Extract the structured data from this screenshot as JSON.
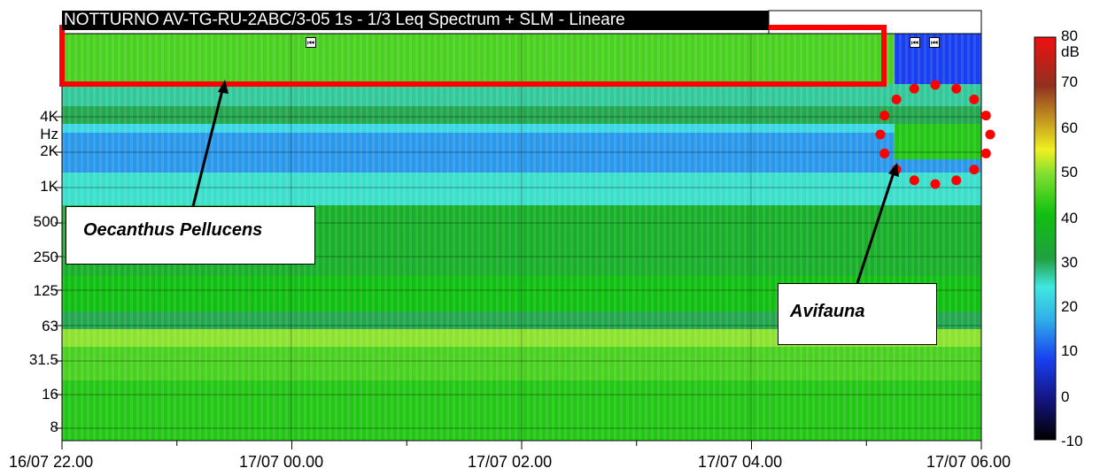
{
  "chart_data": {
    "type": "heatmap",
    "title": "NOTTURNO AV-TG-RU-2ABC/3-05 1s - 1/3 Leq Spectrum + SLM - Lineare",
    "x_tick_labels": [
      "16/07 22.00",
      "17/07 00.00",
      "17/07 02.00",
      "17/07 04.00",
      "17/07 06.00"
    ],
    "y_tick_labels": [
      "8",
      "16",
      "31.5",
      "63",
      "125",
      "250",
      "500",
      "1K",
      "2K",
      "Hz",
      "4K"
    ],
    "colorbar": {
      "unit": "dB",
      "range": [
        -10,
        80
      ],
      "tick_labels": [
        "80",
        "70",
        "60",
        "50",
        "40",
        "30",
        "20",
        "10",
        "0",
        "-10"
      ],
      "colors": [
        "#000000",
        "#1a1a8a",
        "#1040e0",
        "#40a0e0",
        "#40e0e0",
        "#30b040",
        "#20c020",
        "#60e020",
        "#f0f020",
        "#d0a020",
        "#a04020",
        "#e01010"
      ]
    },
    "bands_db": {
      "above_4K": 45,
      "4K": 30,
      "2K_3K": 15,
      "1K": 25,
      "500": 35,
      "250": 35,
      "125": 40,
      "63": 30,
      "31.5": 45,
      "16": 42,
      "8": 42
    }
  },
  "annotations": {
    "insect_label": "Oecanthus Pellucens",
    "bird_label": "Avifauna"
  },
  "markers": [
    "⏮",
    "⏮",
    "⏮"
  ]
}
